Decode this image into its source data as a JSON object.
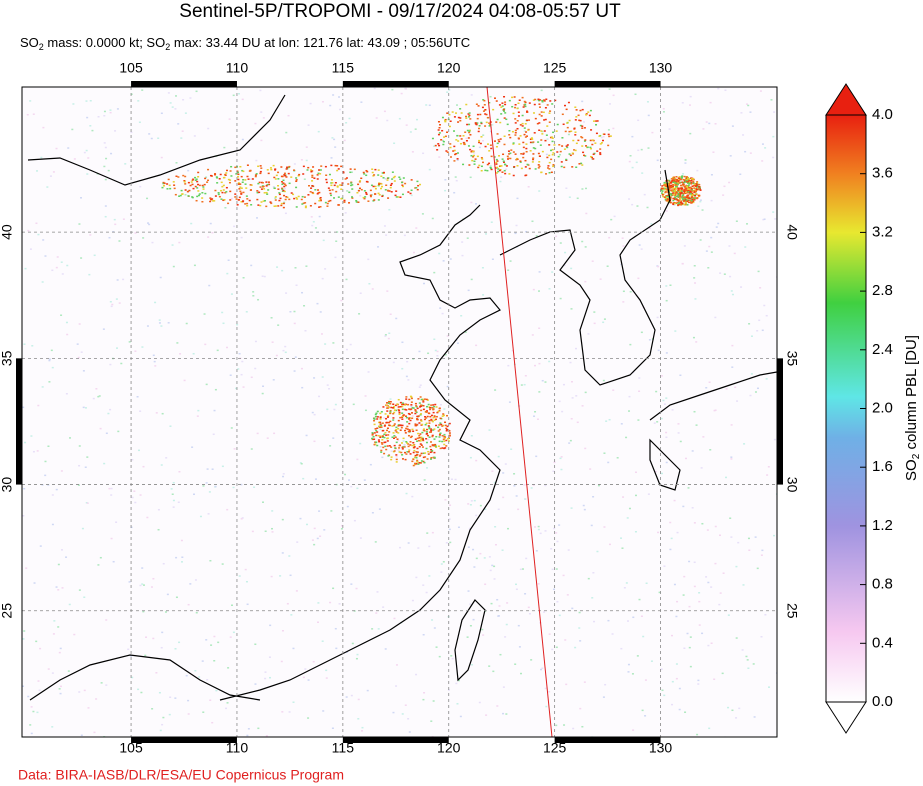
{
  "header": {
    "title": "Sentinel-5P/TROPOMI - 09/17/2024 04:08-05:57 UT",
    "subtitle": [
      "SO",
      "2",
      " mass: 0.0000 kt; SO",
      "2",
      " max: 33.44 DU at lon: 121.76 lat: 43.09 ; 05:56UTC"
    ]
  },
  "map": {
    "xlim": [
      99.85,
      135.5
    ],
    "ylim": [
      20,
      45.75
    ],
    "lon_ticks": [
      105,
      110,
      115,
      120,
      125,
      130
    ],
    "lat_ticks": [
      25,
      30,
      35,
      40
    ]
  },
  "colorbar": {
    "label": [
      "SO",
      "2",
      " column PBL [DU]"
    ],
    "range": [
      0,
      4
    ],
    "ticks": [
      {
        "value": 0,
        "label": "0.0"
      },
      {
        "value": 0.4,
        "label": "0.4"
      },
      {
        "value": 0.8,
        "label": "0.8"
      },
      {
        "value": 1.2,
        "label": "1.2"
      },
      {
        "value": 1.6,
        "label": "1.6"
      },
      {
        "value": 2,
        "label": "2.0"
      },
      {
        "value": 2.4,
        "label": "2.4"
      },
      {
        "value": 2.8,
        "label": "2.8"
      },
      {
        "value": 3.2,
        "label": "3.2"
      },
      {
        "value": 3.6,
        "label": "3.6"
      },
      {
        "value": 4,
        "label": "4.0"
      }
    ]
  },
  "footer": {
    "credit": "Data: BIRA-IASB/DLR/ESA/EU Copernicus Program"
  }
}
